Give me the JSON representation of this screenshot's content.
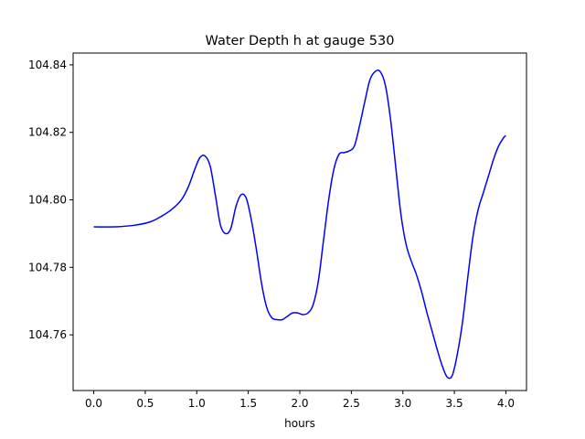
{
  "chart_data": {
    "type": "line",
    "title": "Water Depth h at gauge 530",
    "xlabel": "hours",
    "ylabel": "",
    "xlim": [
      -0.2,
      4.2
    ],
    "ylim": [
      104.7435,
      104.8435
    ],
    "grid": false,
    "xticks": [
      0.0,
      0.5,
      1.0,
      1.5,
      2.0,
      2.5,
      3.0,
      3.5,
      4.0
    ],
    "xtick_labels": [
      "0.0",
      "0.5",
      "1.0",
      "1.5",
      "2.0",
      "2.5",
      "3.0",
      "3.5",
      "4.0"
    ],
    "yticks": [
      104.76,
      104.78,
      104.8,
      104.82,
      104.84
    ],
    "ytick_labels": [
      "104.76",
      "104.78",
      "104.80",
      "104.82",
      "104.84"
    ],
    "series": [
      {
        "color": "#0000ff",
        "x": [
          0.0,
          0.2,
          0.4,
          0.55,
          0.65,
          0.75,
          0.85,
          0.92,
          0.98,
          1.03,
          1.08,
          1.13,
          1.18,
          1.23,
          1.28,
          1.33,
          1.38,
          1.43,
          1.48,
          1.53,
          1.58,
          1.63,
          1.68,
          1.73,
          1.78,
          1.83,
          1.88,
          1.93,
          1.98,
          2.03,
          2.08,
          2.13,
          2.18,
          2.23,
          2.28,
          2.33,
          2.38,
          2.43,
          2.48,
          2.53,
          2.58,
          2.63,
          2.68,
          2.73,
          2.78,
          2.83,
          2.88,
          2.93,
          2.98,
          3.03,
          3.08,
          3.13,
          3.18,
          3.23,
          3.28,
          3.33,
          3.38,
          3.43,
          3.48,
          3.53,
          3.58,
          3.63,
          3.68,
          3.73,
          3.78,
          3.83,
          3.88,
          3.93,
          3.98,
          4.0
        ],
        "y": [
          104.792,
          104.792,
          104.7925,
          104.7935,
          104.795,
          104.797,
          104.8,
          104.804,
          104.809,
          104.8125,
          104.813,
          104.81,
          104.8015,
          104.7925,
          104.79,
          104.7915,
          104.798,
          104.8015,
          104.8005,
          104.794,
          104.785,
          104.775,
          104.768,
          104.765,
          104.7645,
          104.7645,
          104.7655,
          104.7665,
          104.7665,
          104.766,
          104.7665,
          104.769,
          104.776,
          104.788,
          104.8,
          104.809,
          104.8135,
          104.814,
          104.8145,
          104.816,
          104.822,
          104.829,
          104.8355,
          104.838,
          104.838,
          104.834,
          104.824,
          104.81,
          104.796,
          104.787,
          104.782,
          104.778,
          104.773,
          104.767,
          104.7615,
          104.756,
          104.751,
          104.7475,
          104.748,
          104.7545,
          104.764,
          104.777,
          104.789,
          104.797,
          104.802,
          104.807,
          104.812,
          104.816,
          104.8185,
          104.819
        ]
      }
    ]
  }
}
